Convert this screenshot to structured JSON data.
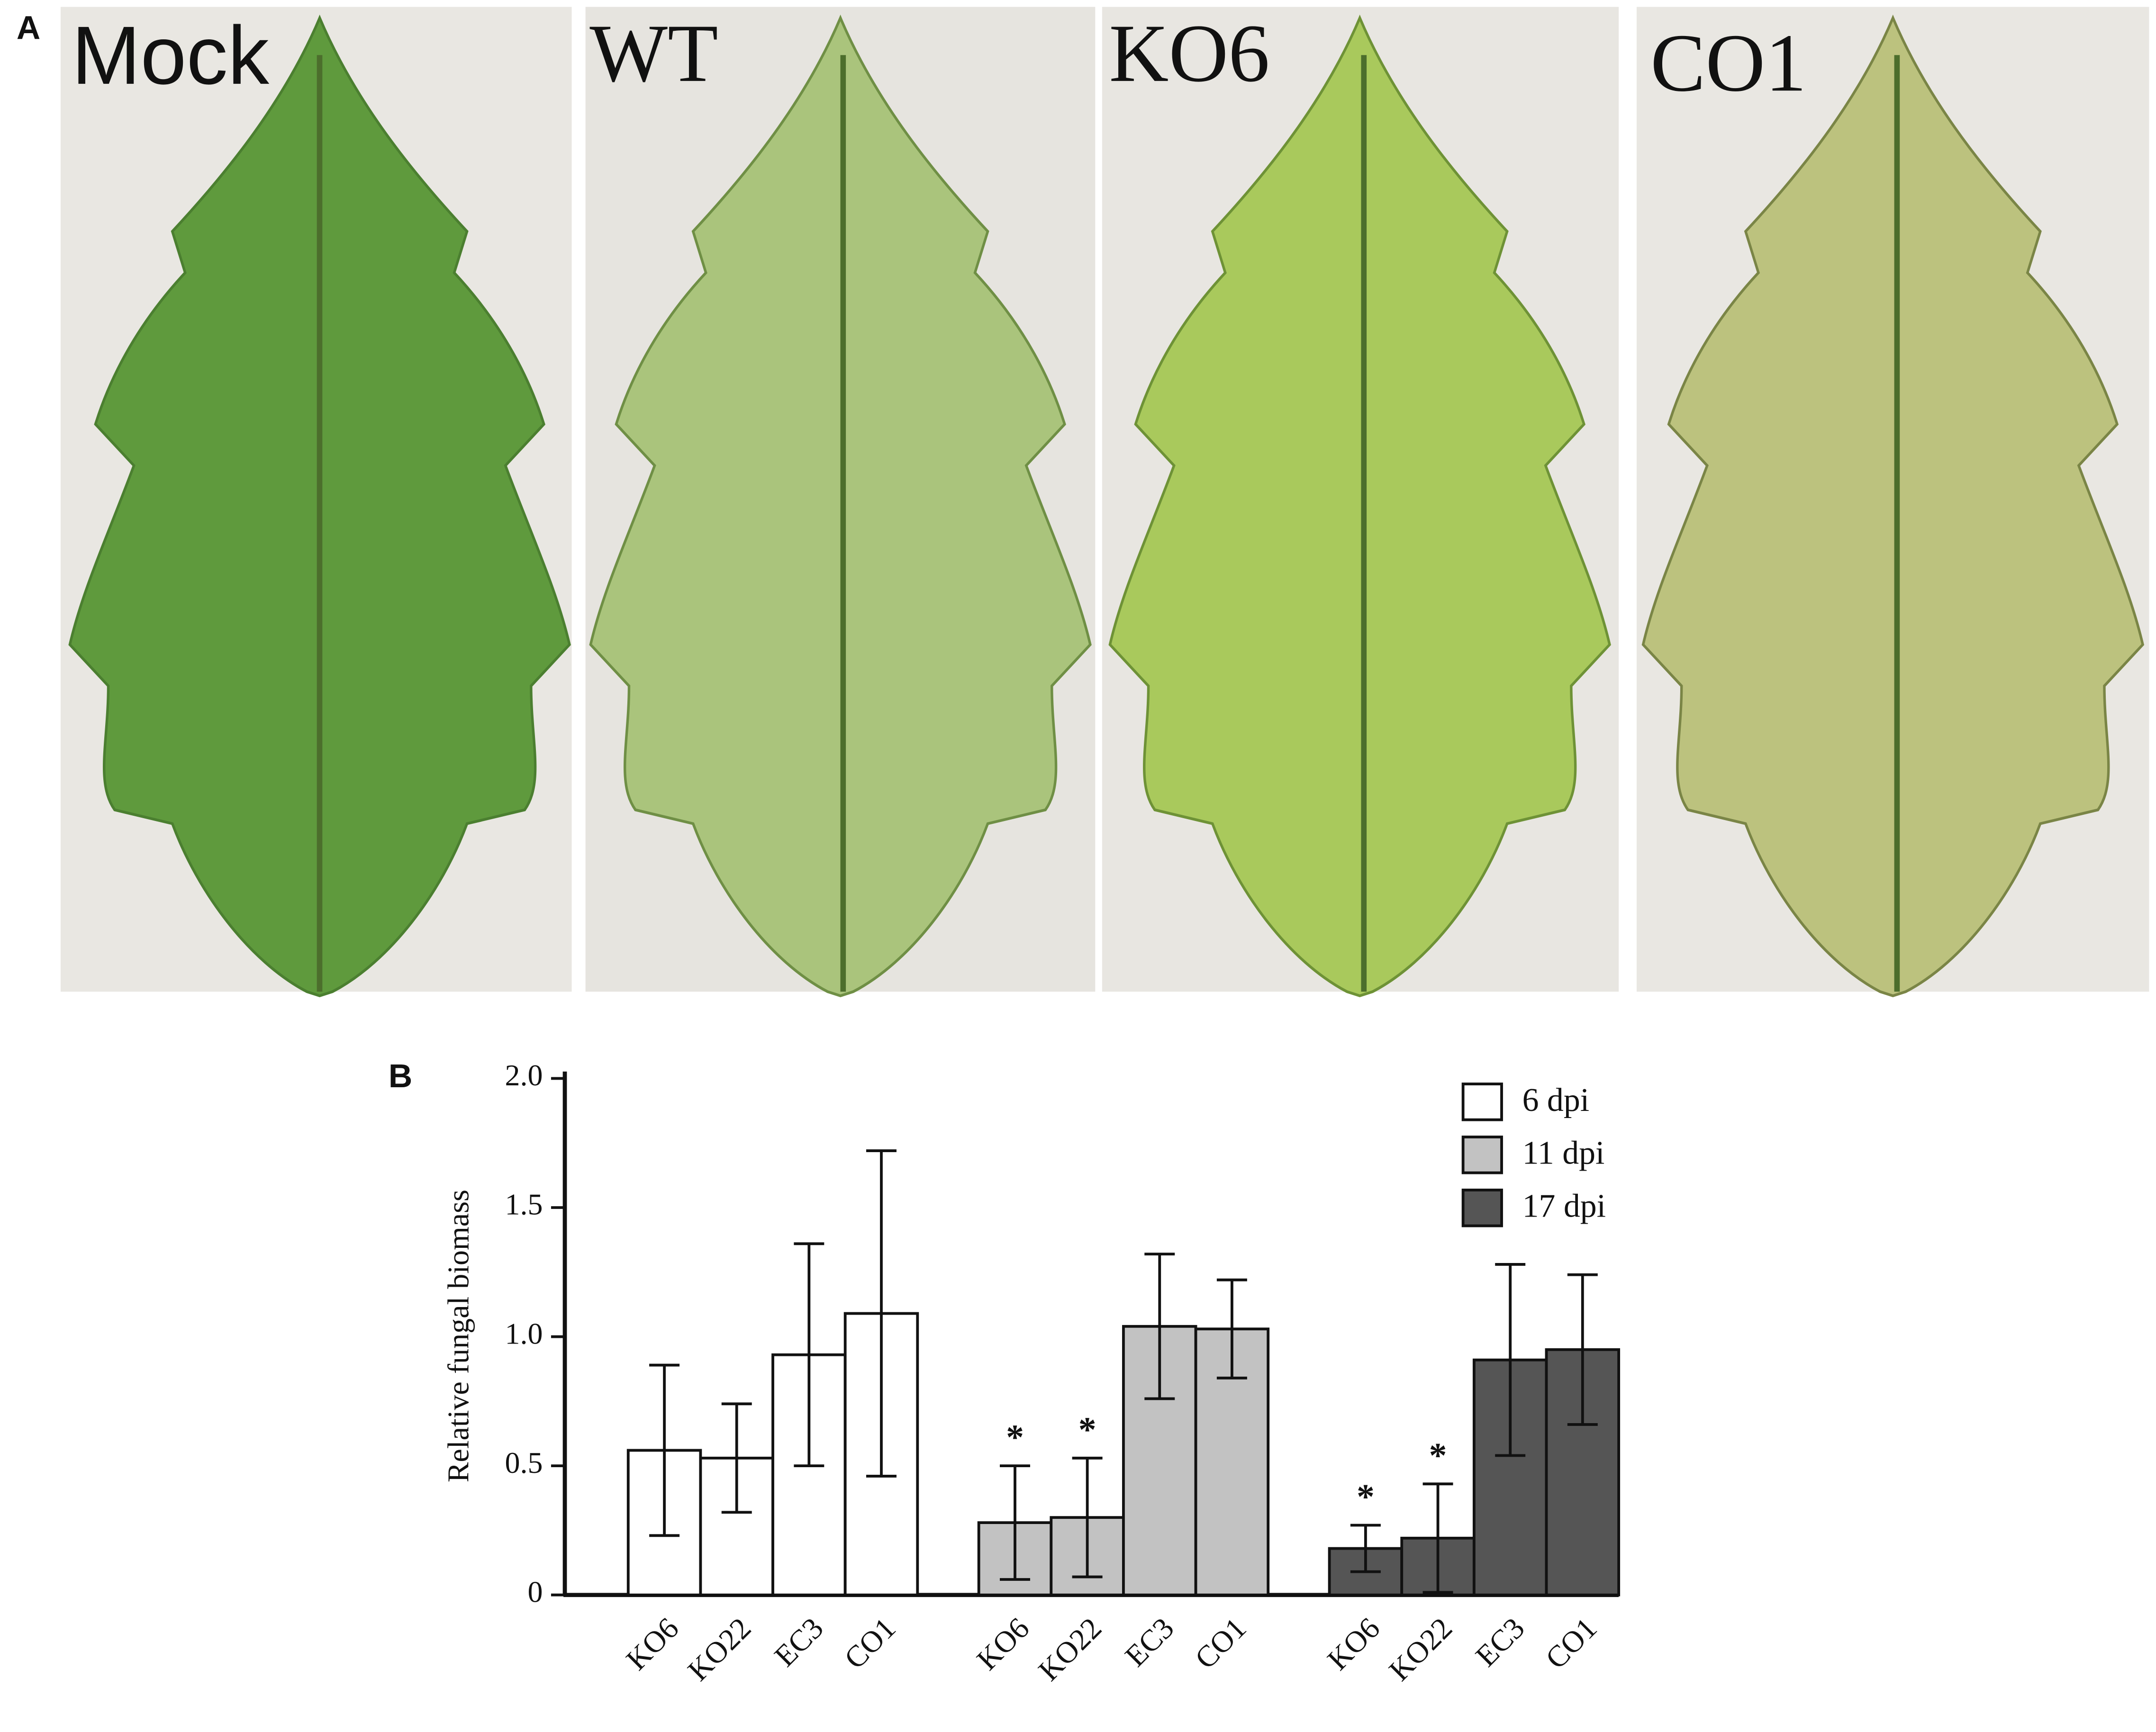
{
  "panel_a": {
    "label": "A",
    "images": [
      "Mock",
      "WT",
      "KO6",
      "CO1"
    ]
  },
  "chart_data": {
    "type": "bar",
    "panel_label": "B",
    "ylabel": "Relative fungal biomass",
    "categories": [
      "KO6",
      "KO22",
      "EC3",
      "CO1"
    ],
    "series": [
      {
        "name": "6 dpi",
        "color": "#ffffff",
        "values": [
          0.56,
          0.53,
          0.93,
          1.09
        ],
        "errors": [
          0.33,
          0.21,
          0.43,
          0.63
        ],
        "significance": [
          null,
          null,
          null,
          null
        ]
      },
      {
        "name": "11 dpi",
        "color": "#c2c2c2",
        "values": [
          0.28,
          0.3,
          1.04,
          1.03
        ],
        "errors": [
          0.22,
          0.23,
          0.28,
          0.19
        ],
        "significance": [
          "*",
          "*",
          null,
          null
        ]
      },
      {
        "name": "17 dpi",
        "color": "#555555",
        "values": [
          0.18,
          0.22,
          0.91,
          0.95
        ],
        "errors": [
          0.09,
          0.21,
          0.37,
          0.29
        ],
        "significance": [
          "*",
          "*",
          null,
          null
        ]
      }
    ],
    "ylim": [
      0,
      2
    ],
    "yticks": [
      0,
      0.5,
      {
        "value": 1,
        "label": "1.0"
      },
      1.5,
      {
        "value": 2,
        "label": "2.0"
      }
    ],
    "legend": "upper right"
  }
}
